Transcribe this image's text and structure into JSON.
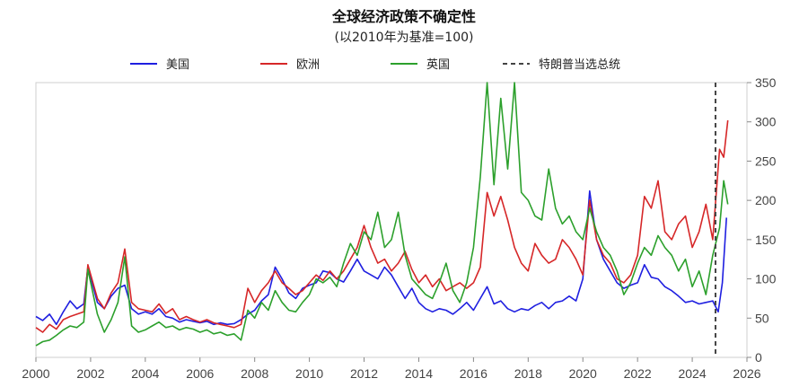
{
  "chart_data": {
    "type": "line",
    "title": "全球经济政策不确定性",
    "subtitle": "(以2010年为基准=100)",
    "xlim": [
      2000,
      2026
    ],
    "ylim": [
      0,
      350
    ],
    "x_ticks": [
      "2000",
      "2002",
      "2004",
      "2006",
      "2008",
      "2010",
      "2012",
      "2014",
      "2016",
      "2018",
      "2020",
      "2022",
      "2024",
      "2026"
    ],
    "y_ticks": [
      "0",
      "50",
      "100",
      "150",
      "200",
      "250",
      "300",
      "350"
    ],
    "grid": false,
    "legend_position": "top",
    "event_line": {
      "label": "特朗普当选总统",
      "x": 2024.85,
      "style": "dashed",
      "color": "#444444"
    },
    "series": [
      {
        "name": "美国",
        "color": "#1f1fe0",
        "points": [
          [
            2000.0,
            52
          ],
          [
            2000.25,
            47
          ],
          [
            2000.5,
            55
          ],
          [
            2000.75,
            42
          ],
          [
            2001.0,
            58
          ],
          [
            2001.25,
            72
          ],
          [
            2001.5,
            62
          ],
          [
            2001.75,
            68
          ],
          [
            2001.9,
            115
          ],
          [
            2002.25,
            70
          ],
          [
            2002.5,
            62
          ],
          [
            2002.75,
            78
          ],
          [
            2003.0,
            88
          ],
          [
            2003.25,
            92
          ],
          [
            2003.5,
            62
          ],
          [
            2003.75,
            55
          ],
          [
            2004.0,
            58
          ],
          [
            2004.25,
            55
          ],
          [
            2004.5,
            62
          ],
          [
            2004.75,
            52
          ],
          [
            2005.0,
            50
          ],
          [
            2005.25,
            45
          ],
          [
            2005.5,
            48
          ],
          [
            2005.75,
            46
          ],
          [
            2006.0,
            44
          ],
          [
            2006.25,
            46
          ],
          [
            2006.5,
            42
          ],
          [
            2006.75,
            44
          ],
          [
            2007.0,
            42
          ],
          [
            2007.25,
            43
          ],
          [
            2007.5,
            48
          ],
          [
            2007.75,
            55
          ],
          [
            2008.0,
            60
          ],
          [
            2008.25,
            72
          ],
          [
            2008.5,
            80
          ],
          [
            2008.75,
            115
          ],
          [
            2009.0,
            100
          ],
          [
            2009.25,
            82
          ],
          [
            2009.5,
            75
          ],
          [
            2009.75,
            88
          ],
          [
            2010.0,
            92
          ],
          [
            2010.25,
            95
          ],
          [
            2010.5,
            110
          ],
          [
            2010.75,
            108
          ],
          [
            2011.0,
            100
          ],
          [
            2011.25,
            96
          ],
          [
            2011.5,
            110
          ],
          [
            2011.75,
            125
          ],
          [
            2012.0,
            110
          ],
          [
            2012.25,
            105
          ],
          [
            2012.5,
            100
          ],
          [
            2012.75,
            115
          ],
          [
            2013.0,
            105
          ],
          [
            2013.25,
            90
          ],
          [
            2013.5,
            75
          ],
          [
            2013.75,
            88
          ],
          [
            2014.0,
            70
          ],
          [
            2014.25,
            62
          ],
          [
            2014.5,
            58
          ],
          [
            2014.75,
            62
          ],
          [
            2015.0,
            60
          ],
          [
            2015.25,
            55
          ],
          [
            2015.5,
            62
          ],
          [
            2015.75,
            70
          ],
          [
            2016.0,
            60
          ],
          [
            2016.25,
            75
          ],
          [
            2016.5,
            90
          ],
          [
            2016.75,
            68
          ],
          [
            2017.0,
            72
          ],
          [
            2017.25,
            62
          ],
          [
            2017.5,
            58
          ],
          [
            2017.75,
            62
          ],
          [
            2018.0,
            60
          ],
          [
            2018.25,
            66
          ],
          [
            2018.5,
            70
          ],
          [
            2018.75,
            62
          ],
          [
            2019.0,
            70
          ],
          [
            2019.25,
            72
          ],
          [
            2019.5,
            78
          ],
          [
            2019.75,
            72
          ],
          [
            2020.0,
            100
          ],
          [
            2020.25,
            212
          ],
          [
            2020.5,
            150
          ],
          [
            2020.75,
            125
          ],
          [
            2021.0,
            110
          ],
          [
            2021.25,
            95
          ],
          [
            2021.5,
            88
          ],
          [
            2021.75,
            92
          ],
          [
            2022.0,
            95
          ],
          [
            2022.25,
            118
          ],
          [
            2022.5,
            102
          ],
          [
            2022.75,
            100
          ],
          [
            2023.0,
            90
          ],
          [
            2023.25,
            85
          ],
          [
            2023.5,
            78
          ],
          [
            2023.75,
            70
          ],
          [
            2024.0,
            72
          ],
          [
            2024.25,
            68
          ],
          [
            2024.5,
            70
          ],
          [
            2024.75,
            72
          ],
          [
            2024.95,
            58
          ],
          [
            2025.1,
            95
          ],
          [
            2025.25,
            178
          ]
        ]
      },
      {
        "name": "欧洲",
        "color": "#d62728",
        "points": [
          [
            2000.0,
            38
          ],
          [
            2000.25,
            32
          ],
          [
            2000.5,
            42
          ],
          [
            2000.75,
            36
          ],
          [
            2001.0,
            48
          ],
          [
            2001.25,
            52
          ],
          [
            2001.5,
            55
          ],
          [
            2001.75,
            58
          ],
          [
            2001.9,
            118
          ],
          [
            2002.25,
            75
          ],
          [
            2002.5,
            62
          ],
          [
            2002.75,
            82
          ],
          [
            2003.0,
            95
          ],
          [
            2003.25,
            138
          ],
          [
            2003.5,
            70
          ],
          [
            2003.75,
            62
          ],
          [
            2004.0,
            60
          ],
          [
            2004.25,
            58
          ],
          [
            2004.5,
            68
          ],
          [
            2004.75,
            56
          ],
          [
            2005.0,
            62
          ],
          [
            2005.25,
            48
          ],
          [
            2005.5,
            52
          ],
          [
            2005.75,
            48
          ],
          [
            2006.0,
            45
          ],
          [
            2006.25,
            48
          ],
          [
            2006.5,
            44
          ],
          [
            2006.75,
            42
          ],
          [
            2007.0,
            40
          ],
          [
            2007.25,
            38
          ],
          [
            2007.5,
            42
          ],
          [
            2007.75,
            88
          ],
          [
            2008.0,
            70
          ],
          [
            2008.25,
            85
          ],
          [
            2008.5,
            95
          ],
          [
            2008.75,
            110
          ],
          [
            2009.0,
            95
          ],
          [
            2009.25,
            88
          ],
          [
            2009.5,
            80
          ],
          [
            2009.75,
            85
          ],
          [
            2010.0,
            95
          ],
          [
            2010.25,
            105
          ],
          [
            2010.5,
            98
          ],
          [
            2010.75,
            110
          ],
          [
            2011.0,
            100
          ],
          [
            2011.25,
            110
          ],
          [
            2011.5,
            125
          ],
          [
            2011.75,
            140
          ],
          [
            2012.0,
            168
          ],
          [
            2012.25,
            140
          ],
          [
            2012.5,
            120
          ],
          [
            2012.75,
            125
          ],
          [
            2013.0,
            110
          ],
          [
            2013.25,
            120
          ],
          [
            2013.5,
            135
          ],
          [
            2013.75,
            112
          ],
          [
            2014.0,
            95
          ],
          [
            2014.25,
            105
          ],
          [
            2014.5,
            90
          ],
          [
            2014.75,
            100
          ],
          [
            2015.0,
            85
          ],
          [
            2015.25,
            90
          ],
          [
            2015.5,
            95
          ],
          [
            2015.75,
            88
          ],
          [
            2016.0,
            95
          ],
          [
            2016.25,
            115
          ],
          [
            2016.5,
            210
          ],
          [
            2016.75,
            180
          ],
          [
            2017.0,
            205
          ],
          [
            2017.25,
            175
          ],
          [
            2017.5,
            140
          ],
          [
            2017.75,
            120
          ],
          [
            2018.0,
            110
          ],
          [
            2018.25,
            145
          ],
          [
            2018.5,
            130
          ],
          [
            2018.75,
            120
          ],
          [
            2019.0,
            125
          ],
          [
            2019.25,
            150
          ],
          [
            2019.5,
            140
          ],
          [
            2019.75,
            125
          ],
          [
            2020.0,
            105
          ],
          [
            2020.25,
            200
          ],
          [
            2020.5,
            150
          ],
          [
            2020.75,
            130
          ],
          [
            2021.0,
            120
          ],
          [
            2021.25,
            100
          ],
          [
            2021.5,
            95
          ],
          [
            2021.75,
            105
          ],
          [
            2022.0,
            130
          ],
          [
            2022.25,
            205
          ],
          [
            2022.5,
            190
          ],
          [
            2022.75,
            225
          ],
          [
            2023.0,
            160
          ],
          [
            2023.25,
            150
          ],
          [
            2023.5,
            170
          ],
          [
            2023.75,
            180
          ],
          [
            2024.0,
            140
          ],
          [
            2024.25,
            160
          ],
          [
            2024.5,
            195
          ],
          [
            2024.75,
            150
          ],
          [
            2025.0,
            265
          ],
          [
            2025.15,
            255
          ],
          [
            2025.3,
            302
          ]
        ]
      },
      {
        "name": "英国",
        "color": "#2ca02c",
        "points": [
          [
            2000.0,
            15
          ],
          [
            2000.25,
            20
          ],
          [
            2000.5,
            22
          ],
          [
            2000.75,
            28
          ],
          [
            2001.0,
            35
          ],
          [
            2001.25,
            40
          ],
          [
            2001.5,
            38
          ],
          [
            2001.75,
            45
          ],
          [
            2001.9,
            112
          ],
          [
            2002.25,
            55
          ],
          [
            2002.5,
            32
          ],
          [
            2002.75,
            48
          ],
          [
            2003.0,
            70
          ],
          [
            2003.25,
            128
          ],
          [
            2003.5,
            40
          ],
          [
            2003.75,
            32
          ],
          [
            2004.0,
            35
          ],
          [
            2004.25,
            40
          ],
          [
            2004.5,
            45
          ],
          [
            2004.75,
            38
          ],
          [
            2005.0,
            40
          ],
          [
            2005.25,
            35
          ],
          [
            2005.5,
            38
          ],
          [
            2005.75,
            36
          ],
          [
            2006.0,
            32
          ],
          [
            2006.25,
            35
          ],
          [
            2006.5,
            30
          ],
          [
            2006.75,
            32
          ],
          [
            2007.0,
            28
          ],
          [
            2007.25,
            30
          ],
          [
            2007.5,
            22
          ],
          [
            2007.75,
            60
          ],
          [
            2008.0,
            50
          ],
          [
            2008.25,
            70
          ],
          [
            2008.5,
            60
          ],
          [
            2008.75,
            85
          ],
          [
            2009.0,
            70
          ],
          [
            2009.25,
            60
          ],
          [
            2009.5,
            58
          ],
          [
            2009.75,
            70
          ],
          [
            2010.0,
            80
          ],
          [
            2010.25,
            100
          ],
          [
            2010.5,
            95
          ],
          [
            2010.75,
            102
          ],
          [
            2011.0,
            90
          ],
          [
            2011.25,
            120
          ],
          [
            2011.5,
            145
          ],
          [
            2011.75,
            130
          ],
          [
            2012.0,
            160
          ],
          [
            2012.25,
            150
          ],
          [
            2012.5,
            185
          ],
          [
            2012.75,
            140
          ],
          [
            2013.0,
            150
          ],
          [
            2013.25,
            185
          ],
          [
            2013.5,
            130
          ],
          [
            2013.75,
            100
          ],
          [
            2014.0,
            90
          ],
          [
            2014.25,
            80
          ],
          [
            2014.5,
            75
          ],
          [
            2014.75,
            95
          ],
          [
            2015.0,
            120
          ],
          [
            2015.25,
            85
          ],
          [
            2015.5,
            70
          ],
          [
            2015.75,
            95
          ],
          [
            2016.0,
            140
          ],
          [
            2016.25,
            230
          ],
          [
            2016.5,
            350
          ],
          [
            2016.75,
            220
          ],
          [
            2017.0,
            330
          ],
          [
            2017.25,
            240
          ],
          [
            2017.5,
            350
          ],
          [
            2017.75,
            210
          ],
          [
            2018.0,
            200
          ],
          [
            2018.25,
            180
          ],
          [
            2018.5,
            175
          ],
          [
            2018.75,
            240
          ],
          [
            2019.0,
            190
          ],
          [
            2019.25,
            170
          ],
          [
            2019.5,
            180
          ],
          [
            2019.75,
            160
          ],
          [
            2020.0,
            150
          ],
          [
            2020.25,
            190
          ],
          [
            2020.5,
            160
          ],
          [
            2020.75,
            140
          ],
          [
            2021.0,
            130
          ],
          [
            2021.25,
            110
          ],
          [
            2021.5,
            80
          ],
          [
            2021.75,
            95
          ],
          [
            2022.0,
            120
          ],
          [
            2022.25,
            140
          ],
          [
            2022.5,
            130
          ],
          [
            2022.75,
            155
          ],
          [
            2023.0,
            140
          ],
          [
            2023.25,
            130
          ],
          [
            2023.5,
            110
          ],
          [
            2023.75,
            125
          ],
          [
            2024.0,
            90
          ],
          [
            2024.25,
            110
          ],
          [
            2024.5,
            80
          ],
          [
            2024.75,
            130
          ],
          [
            2025.0,
            165
          ],
          [
            2025.15,
            225
          ],
          [
            2025.3,
            195
          ]
        ]
      }
    ]
  }
}
